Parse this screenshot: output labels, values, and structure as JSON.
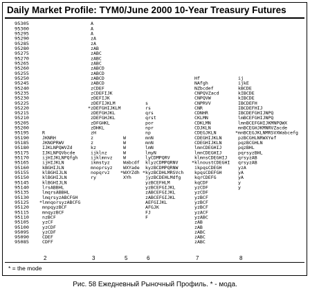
{
  "chart_data": {
    "type": "table",
    "title": "Daily Market Profile: TYM0/June 2000 10-Year Treasury Futures",
    "price_levels": [
      "95305",
      "95300",
      "95295",
      "95290",
      "95285",
      "95280",
      "95275",
      "95270",
      "95265",
      "95260",
      "95255",
      "95250",
      "95245",
      "95240",
      "95235",
      "95230",
      "95225",
      "95220",
      "95215",
      "95210",
      "95205",
      "95200",
      "95195",
      "95190",
      "95185",
      "95180",
      "95175",
      "95170",
      "95165",
      "95160",
      "95155",
      "95150",
      "95145",
      "95140",
      "95135",
      "95130",
      "95125",
      "95120",
      "95115",
      "95110",
      "95105",
      "95100",
      "95095",
      "95090",
      "95085"
    ],
    "days": [
      {
        "label": "2",
        "rows": [
          {
            "level": "95195",
            "text": "R"
          },
          {
            "level": "95190",
            "text": "JKNRH"
          },
          {
            "level": "95185",
            "text": "JKNOPRWV"
          },
          {
            "level": "95180",
            "text": "IJKLNPQWVZd"
          },
          {
            "level": "95175",
            "text": "IJKLNPQVbcde"
          },
          {
            "level": "95170",
            "text": "ijHIJKLNPQfgh"
          },
          {
            "level": "95165",
            "text": "ijHIJKLN"
          },
          {
            "level": "95160",
            "text": "kBGHIJLN"
          },
          {
            "level": "95155",
            "text": "klBGHIJLN"
          },
          {
            "level": "95150",
            "text": "klBGHIJLN"
          },
          {
            "level": "95145",
            "text": "klBGHIJLN"
          },
          {
            "level": "95140",
            "text": "lrsABBHL"
          },
          {
            "level": "95135",
            "text": "lmqrsABBHL"
          },
          {
            "level": "95130",
            "text": "lmqrsyzABCFGH"
          },
          {
            "level": "95125",
            "text": "*lmnqorsyzABCFG",
            "mode": true
          },
          {
            "level": "95120",
            "text": "mnpqyzBCF"
          },
          {
            "level": "95115",
            "text": "mnqyzBCF"
          },
          {
            "level": "95110",
            "text": "nzBCF"
          },
          {
            "level": "95105",
            "text": "yzCF"
          },
          {
            "level": "95100",
            "text": "yzCDF"
          },
          {
            "level": "95095",
            "text": "yzCDF"
          },
          {
            "level": "95090",
            "text": "CDEF"
          },
          {
            "level": "95085",
            "text": "CDFF"
          }
        ]
      },
      {
        "label": "3",
        "rows": [
          {
            "level": "95305",
            "text": "A"
          },
          {
            "level": "95300",
            "text": "A"
          },
          {
            "level": "95295",
            "text": "A"
          },
          {
            "level": "95290",
            "text": "zA"
          },
          {
            "level": "95285",
            "text": "zA"
          },
          {
            "level": "95280",
            "text": "zAB"
          },
          {
            "level": "95275",
            "text": "zABC"
          },
          {
            "level": "95270",
            "text": "zABC"
          },
          {
            "level": "95265",
            "text": "zABC"
          },
          {
            "level": "95260",
            "text": "zABCD"
          },
          {
            "level": "95255",
            "text": "zABCD"
          },
          {
            "level": "95250",
            "text": "zABCD"
          },
          {
            "level": "95245",
            "text": "zABCD"
          },
          {
            "level": "95240",
            "text": "zCDEF"
          },
          {
            "level": "95235",
            "text": "zCDEFIJK"
          },
          {
            "level": "95230",
            "text": "zDEFIJK"
          },
          {
            "level": "95225",
            "text": "zDEFIJKLM"
          },
          {
            "level": "95220",
            "text": "*zDEFGHIJKLM",
            "mode": true
          },
          {
            "level": "95215",
            "text": "zDEFGHJKL"
          },
          {
            "level": "95210",
            "text": "zDEFGHJKL"
          },
          {
            "level": "95205",
            "text": "zDFGHKL"
          },
          {
            "level": "95200",
            "text": "zDHKL"
          },
          {
            "level": "95195",
            "text": "zH"
          },
          {
            "level": "95190",
            "text": "z"
          },
          {
            "level": "95185",
            "text": "z"
          },
          {
            "level": "95180",
            "text": "kz"
          },
          {
            "level": "95175",
            "text": "ijklnz"
          },
          {
            "level": "95170",
            "text": "ijklmnvz"
          },
          {
            "level": "95165",
            "text": "ikmstyz"
          },
          {
            "level": "95160",
            "text": "mnoprsyz"
          },
          {
            "level": "95155",
            "text": "nopqrvz"
          },
          {
            "level": "95150",
            "text": "ry"
          }
        ]
      },
      {
        "label": "5",
        "rows": [
          {
            "level": "95190",
            "text": "W"
          },
          {
            "level": "95185",
            "text": "W"
          },
          {
            "level": "95180",
            "text": "W"
          },
          {
            "level": "95175",
            "text": "W"
          },
          {
            "level": "95170",
            "text": "W"
          },
          {
            "level": "95165",
            "text": "Wabcdf"
          },
          {
            "level": "95160",
            "text": "WXYade"
          },
          {
            "level": "95155",
            "text": "*WXYZdh",
            "mode": true
          },
          {
            "level": "95150",
            "text": "XYh"
          }
        ]
      },
      {
        "label": "6",
        "rows": [
          {
            "level": "95225",
            "text": "s"
          },
          {
            "level": "95220",
            "text": "rs"
          },
          {
            "level": "95215",
            "text": "qrs"
          },
          {
            "level": "95210",
            "text": "qrst"
          },
          {
            "level": "95205",
            "text": "por"
          },
          {
            "level": "95200",
            "text": "npr"
          },
          {
            "level": "95195",
            "text": "np"
          },
          {
            "level": "95190",
            "text": "mnN"
          },
          {
            "level": "95185",
            "text": "mnN"
          },
          {
            "level": "95180",
            "text": "lmN"
          },
          {
            "level": "95175",
            "text": "lmyN"
          },
          {
            "level": "95170",
            "text": "lyCDMPQRV"
          },
          {
            "level": "95165",
            "text": "klyzCDMPQRNV"
          },
          {
            "level": "95160",
            "text": "kyzBCDMPQRNW"
          },
          {
            "level": "95155",
            "text": "*kyzBCDHLMRSVch",
            "mode": true
          },
          {
            "level": "95150",
            "text": "jyzBCDEHLMdfg"
          },
          {
            "level": "95145",
            "text": "yzBCEFHLM"
          },
          {
            "level": "95140",
            "text": "yzBCEFGIJKL"
          },
          {
            "level": "95135",
            "text": "zABCEFGIJKL"
          },
          {
            "level": "95130",
            "text": "zABCEFGIJKL"
          },
          {
            "level": "95125",
            "text": "AEFGIJKL"
          },
          {
            "level": "95120",
            "text": "AFGJK"
          },
          {
            "level": "95115",
            "text": "FJ"
          },
          {
            "level": "95110",
            "text": "F"
          }
        ]
      },
      {
        "label": "7",
        "rows": [
          {
            "level": "95250",
            "text": "Hf"
          },
          {
            "level": "95245",
            "text": "NAfgh"
          },
          {
            "level": "95240",
            "text": "NZbcdef"
          },
          {
            "level": "95235",
            "text": "CNPQVZacd"
          },
          {
            "level": "95230",
            "text": "CNPQVW"
          },
          {
            "level": "95225",
            "text": "CNPRVV"
          },
          {
            "level": "95220",
            "text": "CNR"
          },
          {
            "level": "95215",
            "text": "CDNHR"
          },
          {
            "level": "95210",
            "text": "CKLMN"
          },
          {
            "level": "95205",
            "text": "CDKLMN"
          },
          {
            "level": "95200",
            "text": "CDJKLN"
          },
          {
            "level": "95195",
            "text": "CDEGJKLN"
          },
          {
            "level": "95190",
            "text": "CDEGHIJKLN"
          },
          {
            "level": "95185",
            "text": "CDEGHIJKLN"
          },
          {
            "level": "95180",
            "text": "lmnCDEGHIJ"
          },
          {
            "level": "95175",
            "text": "lmnCDEGHIJ"
          },
          {
            "level": "95170",
            "text": "klmnsCDEGHIJ"
          },
          {
            "level": "95165",
            "text": "*klnoustCDEGHI",
            "mode": true
          },
          {
            "level": "95160",
            "text": "ikpqsCDEGH"
          },
          {
            "level": "95155",
            "text": "kpqsCDEFGH"
          },
          {
            "level": "95150",
            "text": "kqrCDEFG"
          },
          {
            "level": "95145",
            "text": "kqCDF"
          },
          {
            "level": "95140",
            "text": "yzCDF"
          },
          {
            "level": "95135",
            "text": "yzCDF"
          },
          {
            "level": "95130",
            "text": "yzBCF"
          },
          {
            "level": "95125",
            "text": "yzBCF"
          },
          {
            "level": "95120",
            "text": "yzBCF"
          },
          {
            "level": "95115",
            "text": "yzACF"
          },
          {
            "level": "95110",
            "text": "yzABC"
          },
          {
            "level": "95105",
            "text": "zAB"
          },
          {
            "level": "95100",
            "text": "zAB"
          },
          {
            "level": "95095",
            "text": "zABC"
          },
          {
            "level": "95090",
            "text": "zABC"
          },
          {
            "level": "95085",
            "text": "zABC"
          }
        ]
      },
      {
        "label": "8",
        "rows": [
          {
            "level": "95250",
            "text": "ij"
          },
          {
            "level": "95245",
            "text": "ijkE"
          },
          {
            "level": "95240",
            "text": "kBCDE"
          },
          {
            "level": "95235",
            "text": "kIBCDE"
          },
          {
            "level": "95230",
            "text": "kIBCDE"
          },
          {
            "level": "95225",
            "text": "IBCDEFH"
          },
          {
            "level": "95220",
            "text": "IBCDEFHIJ"
          },
          {
            "level": "95215",
            "text": "IBCDEFGHIJNPQ"
          },
          {
            "level": "95210",
            "text": "lmBCEFGHIJNPQ"
          },
          {
            "level": "95205",
            "text": "lmnBCEFGHIJKMNPQWX"
          },
          {
            "level": "95200",
            "text": "mnBCEGHJKMNRVZacde"
          },
          {
            "level": "95195",
            "text": "*mnBCEGJKLNMRSVXWabcefg",
            "mode": true
          },
          {
            "level": "95190",
            "text": "pzBCGHLNRWXYef"
          },
          {
            "level": "95185",
            "text": "pqzBCGHLN"
          },
          {
            "level": "95180",
            "text": "pqzBHL"
          },
          {
            "level": "95175",
            "text": "pqrsyzBHL"
          },
          {
            "level": "95170",
            "text": "qrsyzAB"
          },
          {
            "level": "95165",
            "text": "qrsyzAB"
          },
          {
            "level": "95160",
            "text": "yzA"
          },
          {
            "level": "95155",
            "text": "yA"
          },
          {
            "level": "95150",
            "text": "yA"
          },
          {
            "level": "95145",
            "text": "y"
          },
          {
            "level": "95140",
            "text": "y"
          }
        ]
      }
    ],
    "legend": "* = the mode"
  },
  "caption": "Рис. 58 Ежедневный Рыночный Профиль. * - мода."
}
